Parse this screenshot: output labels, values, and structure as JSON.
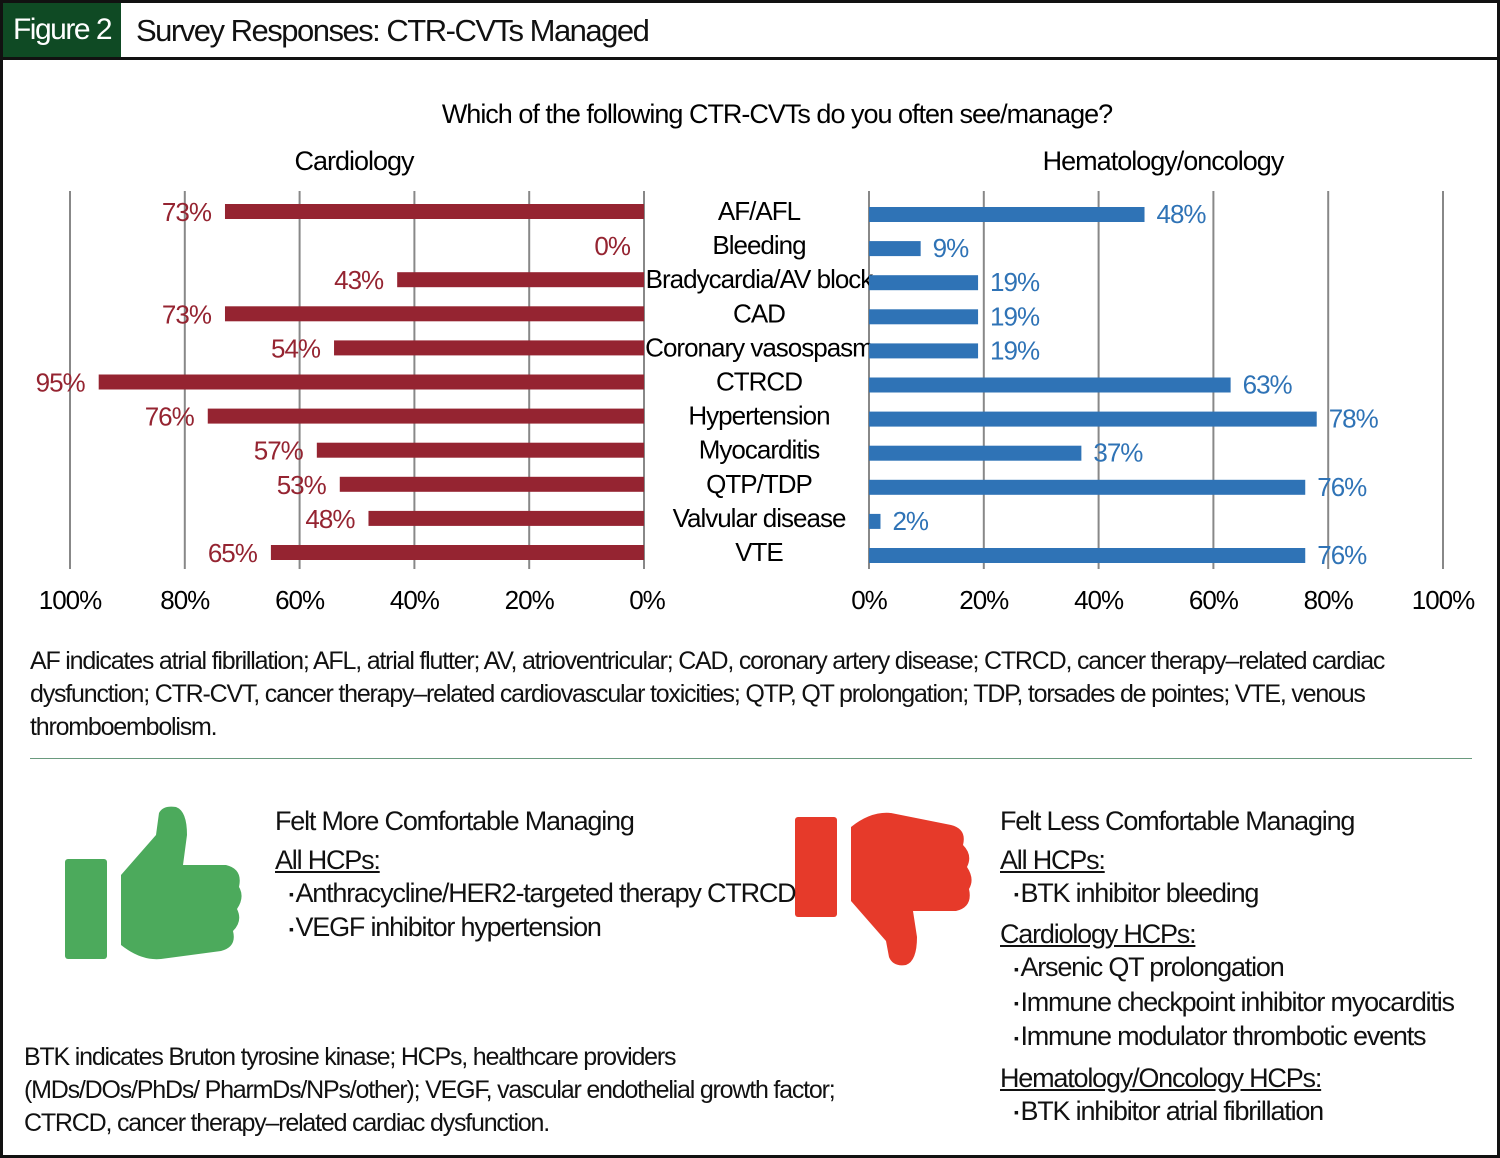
{
  "header": {
    "figure_label": "Figure 2",
    "title": "Survey Responses: CTR-CVTs Managed"
  },
  "chart_data": {
    "type": "bar",
    "title": "Which of the following CTR-CVTs do you often see/manage?",
    "categories": [
      "AF/AFL",
      "Bleeding",
      "Bradycardia/AV block",
      "CAD",
      "Coronary vasospasm",
      "CTRCD",
      "Hypertension",
      "Myocarditis",
      "QTP/TDP",
      "Valvular disease",
      "VTE"
    ],
    "series": [
      {
        "name": "Cardiology",
        "color": "#952431",
        "values": [
          73,
          0,
          43,
          73,
          54,
          95,
          76,
          57,
          53,
          48,
          65
        ],
        "orientation": "left"
      },
      {
        "name": "Hematology/oncology",
        "color": "#2f73b6",
        "values": [
          48,
          9,
          19,
          19,
          19,
          63,
          78,
          37,
          76,
          2,
          76
        ],
        "orientation": "right"
      }
    ],
    "xlim": [
      0,
      100
    ],
    "tick_labels": [
      "0%",
      "20%",
      "40%",
      "60%",
      "80%",
      "100%"
    ],
    "grid": true,
    "value_suffix": "%"
  },
  "abbreviations_chart": "AF indicates atrial fibrillation; AFL, atrial flutter; AV, atrioventricular; CAD, coronary artery disease; CTRCD, cancer therapy–related cardiac dysfunction; CTR-CVT, cancer therapy–related cardiovascular toxicities; QTP, QT prolongation; TDP, torsades de pointes; VTE, venous thromboembolism.",
  "more_comfortable": {
    "icon": "thumbs-up-icon",
    "color": "#4caa5c",
    "heading": "Felt More Comfortable Managing",
    "groups": [
      {
        "label": "All HCPs:",
        "items": [
          "Anthracycline/HER2-targeted therapy CTRCD",
          "VEGF inhibitor hypertension"
        ]
      }
    ]
  },
  "less_comfortable": {
    "icon": "thumbs-down-icon",
    "color": "#e63a2a",
    "heading": "Felt Less Comfortable Managing",
    "groups": [
      {
        "label": "All HCPs:",
        "items": [
          "BTK inhibitor bleeding"
        ]
      },
      {
        "label": "Cardiology HCPs:",
        "items": [
          "Arsenic QT prolongation",
          "Immune checkpoint inhibitor myocarditis",
          "Immune modulator thrombotic events"
        ]
      },
      {
        "label": "Hematology/Oncology HCPs:",
        "items": [
          "BTK inhibitor atrial fibrillation"
        ]
      }
    ]
  },
  "abbreviations_bottom": "BTK indicates  Bruton tyrosine kinase; HCPs, healthcare providers (MDs/DOs/PhDs/ PharmDs/NPs/other); VEGF, vascular endothelial growth factor; CTRCD, cancer therapy–related cardiac dysfunction."
}
